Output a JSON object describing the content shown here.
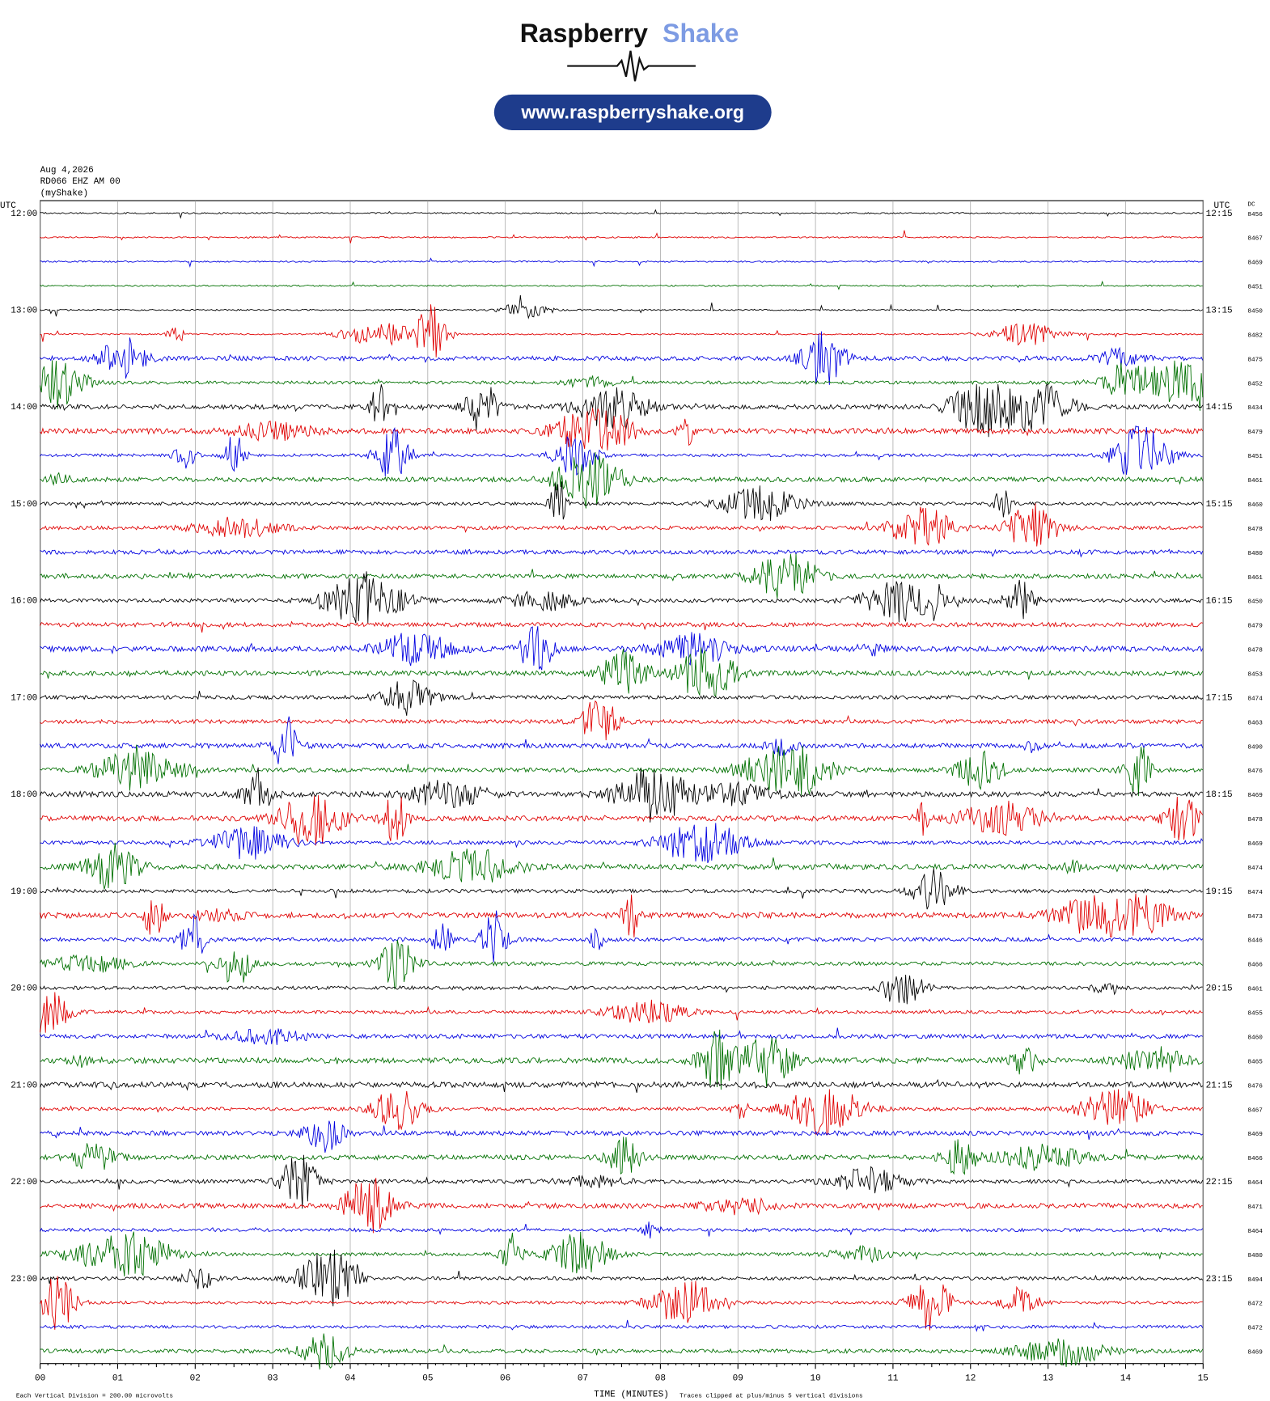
{
  "header": {
    "brand": "Raspberry",
    "brand_accent": "Shake",
    "url": "www.raspberryshake.org"
  },
  "info": {
    "date": "Aug 4,2026",
    "station": "RD066 EHZ AM 00",
    "source": "(myShake)"
  },
  "left_axis_title": "UTC",
  "right_axis_title": "UTC",
  "dc_title": "DC",
  "trace_colors": [
    "#000000",
    "#e00000",
    "#0000e0",
    "#007000"
  ],
  "hour_labels": [
    {
      "left": "12:00",
      "right": "12:15"
    },
    {
      "left": "13:00",
      "right": "13:15"
    },
    {
      "left": "14:00",
      "right": "14:15"
    },
    {
      "left": "15:00",
      "right": "15:15"
    },
    {
      "left": "16:00",
      "right": "16:15"
    },
    {
      "left": "17:00",
      "right": "17:15"
    },
    {
      "left": "18:00",
      "right": "18:15"
    },
    {
      "left": "19:00",
      "right": "19:15"
    },
    {
      "left": "20:00",
      "right": "20:15"
    },
    {
      "left": "21:00",
      "right": "21:15"
    },
    {
      "left": "22:00",
      "right": "22:15"
    },
    {
      "left": "23:00",
      "right": "23:15"
    }
  ],
  "dc_values": [
    "8456",
    "8467",
    "8469",
    "8451",
    "8450",
    "8482",
    "8475",
    "8452",
    "8434",
    "8479",
    "8451",
    "8461",
    "8460",
    "8478",
    "8480",
    "8461",
    "8450",
    "8479",
    "8478",
    "8453",
    "8474",
    "8463",
    "8490",
    "8476",
    "8469",
    "8478",
    "8469",
    "8474",
    "8474",
    "8473",
    "8446",
    "8466",
    "8461",
    "8455",
    "8460",
    "8465",
    "8476",
    "8467",
    "8469",
    "8466",
    "8464",
    "8471",
    "8464",
    "8480",
    "8494",
    "8472",
    "8472",
    "8469"
  ],
  "x_ticks": [
    "00",
    "01",
    "02",
    "03",
    "04",
    "05",
    "06",
    "07",
    "08",
    "09",
    "10",
    "11",
    "12",
    "13",
    "14",
    "15"
  ],
  "x_label": "TIME (MINUTES)",
  "footer_left": "Each Vertical Division =  200.00 microvolts",
  "footer_right": "Traces clipped at plus/minus 5 vertical divisions"
}
